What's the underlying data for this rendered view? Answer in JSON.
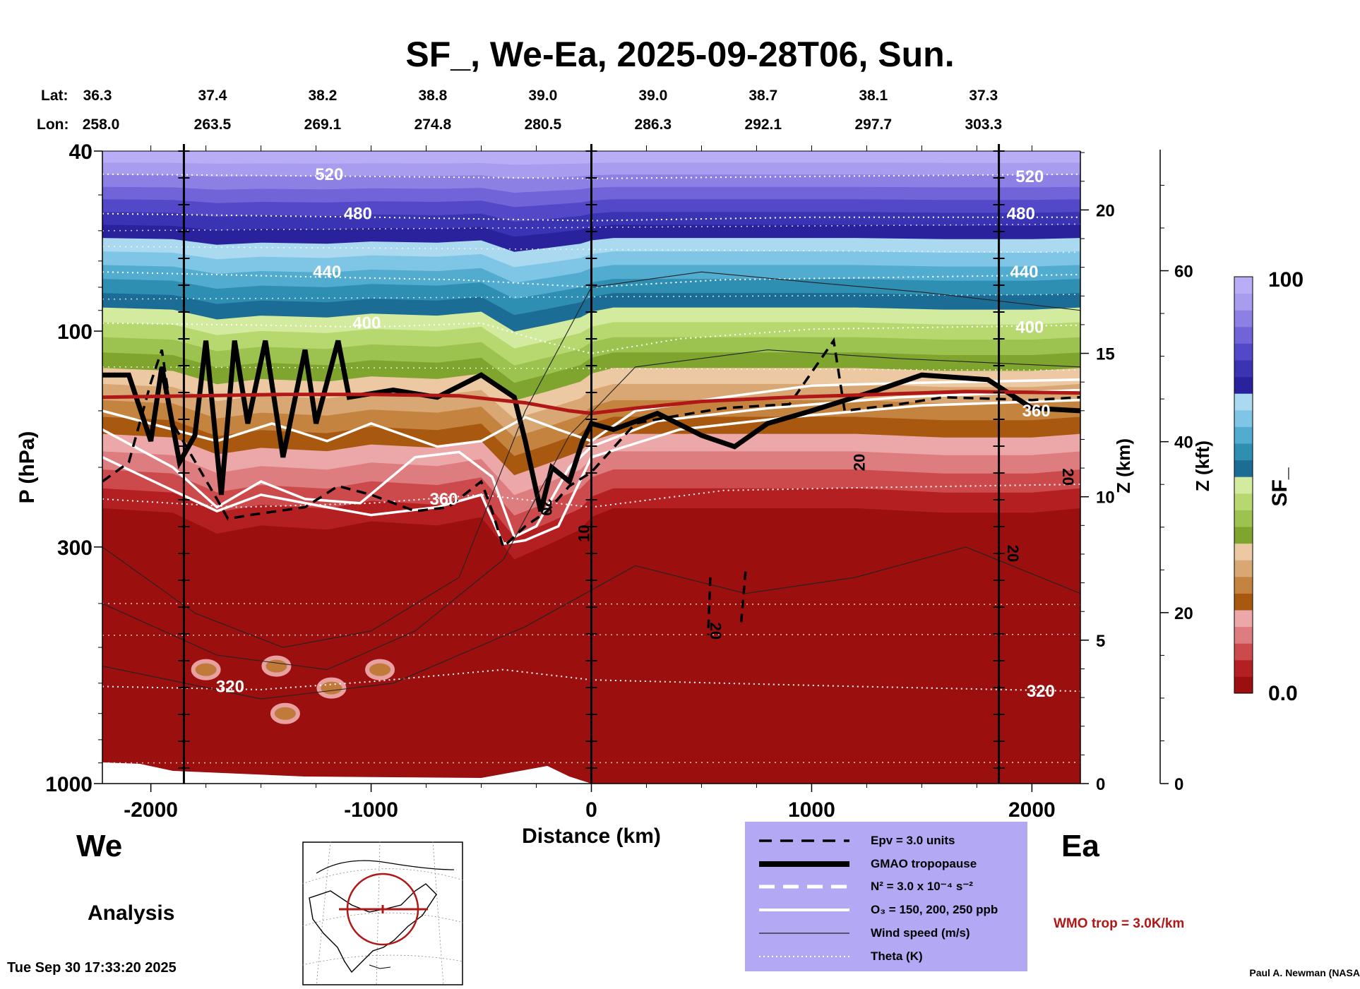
{
  "chart_data": {
    "type": "heatmap",
    "title": "SF_, We-Ea, 2025-09-28T06, Sun.",
    "xlabel": "Distance (km)",
    "ylabel": "P (hPa)",
    "right_axis_1_label": "Z (km)",
    "right_axis_2_label": "Z (kft)",
    "colorbar_label": "SF_",
    "xlim": [
      -2220,
      2220
    ],
    "ylim": [
      1000,
      40
    ],
    "x_ticks": [
      -2000,
      -1000,
      0,
      1000,
      2000
    ],
    "x_tick_labels": [
      "-2000",
      "-1000",
      "0",
      "1000",
      "2000"
    ],
    "y_ticks": [
      1000,
      300,
      100,
      40
    ],
    "y_tick_labels": [
      "1000",
      "300",
      "100",
      "40"
    ],
    "z_km_ticks": [
      0,
      5,
      10,
      15,
      20
    ],
    "z_kft_ticks": [
      0,
      20,
      40,
      60
    ],
    "colorbar_range": [
      0.0,
      100
    ],
    "colorbar_tick_labels": [
      "100",
      "0.0"
    ],
    "colorbar_colors": [
      "#9c0f0f",
      "#b41f22",
      "#cc4a4c",
      "#de7d80",
      "#eca7a8",
      "#a8580f",
      "#c48440",
      "#d9a774",
      "#ecc9a2",
      "#7fa52e",
      "#9cc24f",
      "#b6d86e",
      "#d3eb9e",
      "#1c6d95",
      "#2f8fb3",
      "#52acd0",
      "#7fc5e5",
      "#aad9f0",
      "#2a229c",
      "#3a33b4",
      "#5248c8",
      "#7064d8",
      "#8d80e4",
      "#a79cee",
      "#b8adf6"
    ],
    "lat_label": "Lat:",
    "lon_label": "Lon:",
    "lats": [
      "36.3",
      "37.4",
      "38.2",
      "38.8",
      "39.0",
      "39.0",
      "38.7",
      "38.1",
      "37.3"
    ],
    "lons": [
      "258.0",
      "263.5",
      "269.1",
      "274.8",
      "280.5",
      "286.3",
      "292.1",
      "297.7",
      "303.3"
    ],
    "lat_lon_x": [
      -2220,
      -1720,
      -1220,
      -720,
      -220,
      280,
      780,
      1280,
      1780
    ],
    "vertical_markers_km": [
      -1850,
      0,
      1850
    ],
    "theta_contours_K": [
      {
        "value": 320,
        "labels": [
          "320",
          "320"
        ]
      },
      {
        "value": 360,
        "labels": [
          "360",
          "360"
        ]
      },
      {
        "value": 400,
        "labels": [
          "400",
          "400"
        ]
      },
      {
        "value": 440,
        "labels": [
          "440",
          "440"
        ]
      },
      {
        "value": 480,
        "labels": [
          "480",
          "480"
        ]
      },
      {
        "value": 520,
        "labels": [
          "520",
          "520"
        ]
      }
    ],
    "wind_contour_labels": [
      "20",
      "20",
      "20",
      "20",
      "10",
      "20"
    ],
    "tropopause_wmo_hPa": [
      [
        -2220,
        140
      ],
      [
        -1800,
        139
      ],
      [
        -1400,
        138
      ],
      [
        -1000,
        138
      ],
      [
        -600,
        139
      ],
      [
        -300,
        144
      ],
      [
        -100,
        150
      ],
      [
        0,
        152
      ],
      [
        200,
        148
      ],
      [
        500,
        143
      ],
      [
        900,
        140
      ],
      [
        1300,
        138
      ],
      [
        1700,
        136
      ],
      [
        2220,
        137
      ]
    ]
  },
  "labels": {
    "west": "We",
    "east": "Ea",
    "analysis": "Analysis",
    "timestamp": "Tue Sep 30 17:33:20 2025",
    "credit": "Paul A. Newman (NASA",
    "wmo_note": "WMO trop = 3.0K/km"
  },
  "legend": {
    "items": [
      {
        "style": "black-dashed",
        "text": "Epv = 3.0 units"
      },
      {
        "style": "black-thick",
        "text": "GMAO tropopause"
      },
      {
        "style": "white-dashed",
        "text": "N² = 3.0 x 10⁻⁴ s⁻²"
      },
      {
        "style": "white-solid",
        "text": "O₃ = 150, 200, 250 ppb"
      },
      {
        "style": "black-thin",
        "text": "Wind speed (m/s)"
      },
      {
        "style": "white-dotted",
        "text": "Theta (K)"
      }
    ]
  },
  "colors": {
    "wmo_tropopause": "#b01818",
    "legend_bg": "#b3a8f4"
  }
}
